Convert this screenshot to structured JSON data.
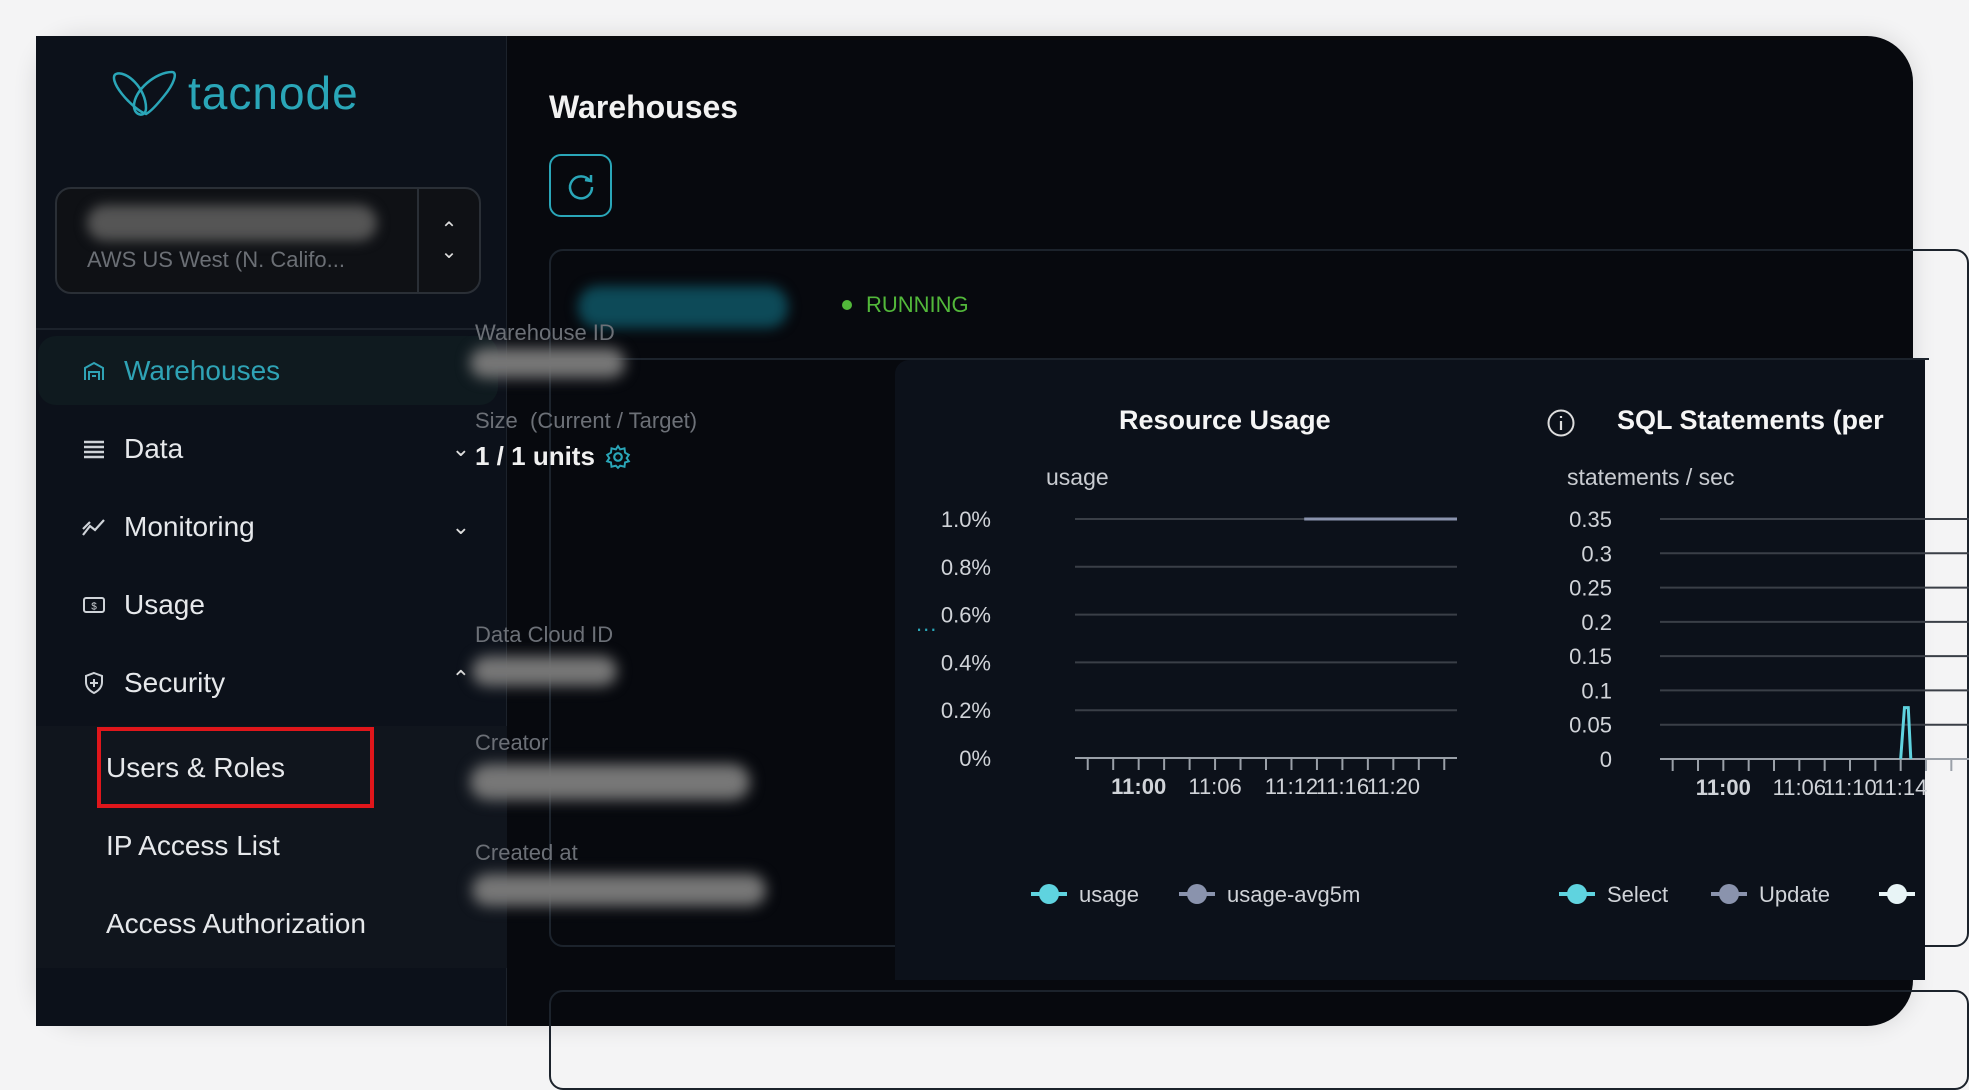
{
  "brand": {
    "name": "tacnode",
    "color": "#2aa6b8"
  },
  "selector": {
    "region": "AWS US West (N. Califo..."
  },
  "sidebar": {
    "items": [
      {
        "label": "Warehouses",
        "icon": "warehouse-icon",
        "active": true
      },
      {
        "label": "Data",
        "icon": "list-icon",
        "expand": "chevron-down"
      },
      {
        "label": "Monitoring",
        "icon": "trend-icon",
        "expand": "chevron-down"
      },
      {
        "label": "Usage",
        "icon": "billing-icon"
      },
      {
        "label": "Security",
        "icon": "shield-icon",
        "expand": "chevron-up"
      }
    ],
    "security_sub": [
      {
        "label": "Users & Roles",
        "highlighted": true
      },
      {
        "label": "IP Access List"
      },
      {
        "label": "Access Authorization"
      }
    ]
  },
  "page": {
    "title": "Warehouses"
  },
  "warehouse": {
    "status": "RUNNING",
    "status_color": "#52b83a",
    "id_label": "Warehouse ID",
    "size_label": "Size  (Current / Target)",
    "size_value": "1 / 1 units",
    "cloud_label": "Data Cloud ID",
    "creator_label": "Creator",
    "created_label": "Created at",
    "more": "..."
  },
  "chart_data": [
    {
      "type": "line",
      "title": "Resource Usage",
      "ylabel": "usage",
      "yticks": [
        "0%",
        "0.2%",
        "0.4%",
        "0.6%",
        "0.8%",
        "1.0%"
      ],
      "ylim": [
        0,
        1.0
      ],
      "xlim": [
        "10:55",
        "11:25"
      ],
      "xticks": [
        {
          "label": "11:00",
          "bold": true
        },
        {
          "label": "11:06"
        },
        {
          "label": "11:12"
        },
        {
          "label": "11:16"
        },
        {
          "label": "11:20"
        }
      ],
      "series": [
        {
          "name": "usage",
          "color": "#5fd3df",
          "points": []
        },
        {
          "name": "usage-avg5m",
          "color": "#8a93ad",
          "points": [
            [
              "11:13",
              1.0
            ],
            [
              "11:25",
              1.0
            ]
          ]
        }
      ],
      "legend": "bottom",
      "grid": true
    },
    {
      "type": "line",
      "title": "SQL Statements (per",
      "ylabel": "statements / sec",
      "info_icon": true,
      "yticks": [
        "0",
        "0.05",
        "0.1",
        "0.15",
        "0.2",
        "0.25",
        "0.3",
        "0.35"
      ],
      "ylim": [
        0,
        0.35
      ],
      "xlim": [
        "10:55",
        "11:25"
      ],
      "xticks": [
        {
          "label": "11:00",
          "bold": true
        },
        {
          "label": "11:06"
        },
        {
          "label": "11:10"
        },
        {
          "label": "11:14"
        }
      ],
      "series": [
        {
          "name": "Select",
          "color": "#5fd3df",
          "points": [
            [
              "11:14",
              0
            ],
            [
              "11:14.3",
              0.075
            ],
            [
              "11:14.6",
              0.075
            ],
            [
              "11:14.8",
              0
            ]
          ]
        },
        {
          "name": "Update",
          "color": "#8a93ad",
          "points": []
        },
        {
          "name": "",
          "color": "#e8f4f6",
          "points": []
        }
      ],
      "legend": "bottom",
      "grid": true
    }
  ]
}
